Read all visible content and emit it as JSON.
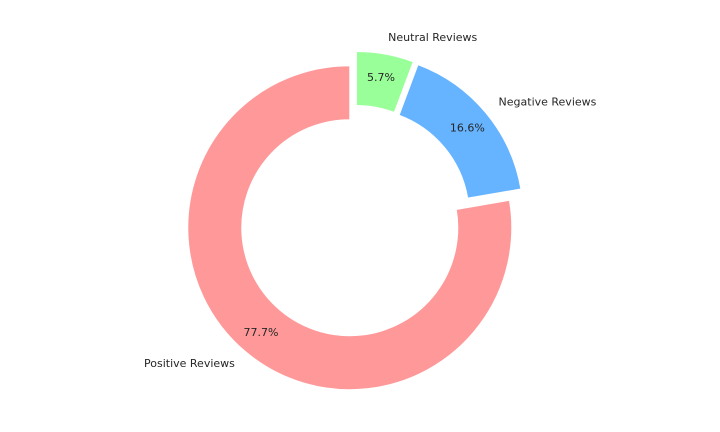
{
  "chart_data": {
    "type": "pie",
    "variant": "donut",
    "title": "",
    "start_angle_deg": 90,
    "direction": "counterclockwise",
    "categories": [
      "Positive Reviews",
      "Negative Reviews",
      "Neutral Reviews"
    ],
    "values": [
      77.7,
      16.6,
      5.7
    ],
    "percent_labels": [
      "77.7%",
      "16.6%",
      "5.7%"
    ],
    "colors": [
      "#ff9999",
      "#66b3ff",
      "#99ff99"
    ],
    "explode": [
      0.05,
      0.05,
      0.05
    ],
    "legend": "none"
  }
}
